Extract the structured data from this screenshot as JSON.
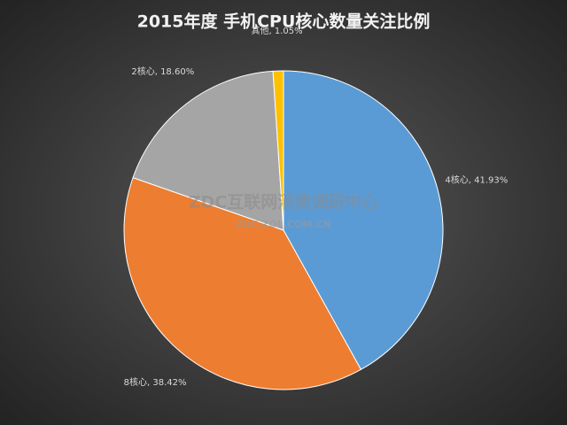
{
  "chart_data": {
    "type": "pie",
    "title": "2015年度 手机CPU核心数量关注比例",
    "values": [
      41.93,
      38.42,
      18.6,
      1.05
    ],
    "value_labels": [
      "4核心, 41.93%",
      "8核心, 38.42%",
      "2核心, 18.60%",
      "其他, 1.05%"
    ],
    "colors": [
      "#5b9bd5",
      "#ed7d31",
      "#a5a5a5",
      "#ffc000"
    ],
    "watermark": "ZDC互联网消费调研中心",
    "watermark_url": "ZDC.ZOL.COM.CN"
  }
}
